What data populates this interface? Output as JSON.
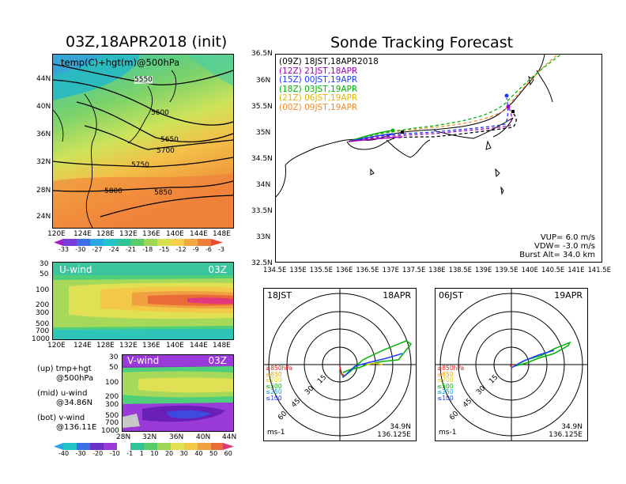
{
  "left_title": "03Z,18APR2018 (init)",
  "right_title": "Sonde Tracking Forecast",
  "top_map": {
    "label": "temp(C)+hgt(m)@500hPa",
    "contour_labels": [
      "5550",
      "5600",
      "5650",
      "5700",
      "5750",
      "5800",
      "5850"
    ],
    "lat_ticks": [
      "44N",
      "40N",
      "36N",
      "32N",
      "28N",
      "24N"
    ],
    "lon_ticks": [
      "120E",
      "124E",
      "128E",
      "132E",
      "136E",
      "140E",
      "144E",
      "148E"
    ],
    "temp_colorbar": [
      "-33",
      "-30",
      "-27",
      "-24",
      "-21",
      "-18",
      "-15",
      "-12",
      "-9",
      "-6",
      "-3"
    ]
  },
  "uwind": {
    "label": "U-wind",
    "time": "03Z",
    "p_ticks": [
      "30",
      "50",
      "100",
      "200",
      "300",
      "500",
      "700",
      "1000"
    ],
    "lon_ticks": [
      "120E",
      "124E",
      "128E",
      "132E",
      "136E",
      "140E",
      "144E",
      "148E"
    ]
  },
  "vwind": {
    "label": "V-wind",
    "time": "03Z",
    "p_ticks": [
      "30",
      "50",
      "100",
      "200",
      "300",
      "500",
      "700",
      "1000"
    ],
    "lat_ticks": [
      "28N",
      "32N",
      "36N",
      "40N",
      "44N"
    ]
  },
  "wind_colorbar": [
    "-40",
    "-30",
    "-20",
    "-10",
    "-1",
    "1",
    "10",
    "20",
    "30",
    "40",
    "50",
    "60"
  ],
  "notes": [
    {
      "line1": "(up) tmp+hgt",
      "line2": "@500hPa"
    },
    {
      "line1": "(mid) u-wind",
      "line2": "@34.86N"
    },
    {
      "line1": "(bot) v-wind",
      "line2": "@136.11E"
    }
  ],
  "track_map": {
    "lat_ticks": [
      "36.5N",
      "36N",
      "35.5N",
      "35N",
      "34.5N",
      "34N",
      "33.5N",
      "33N",
      "32.5N"
    ],
    "lon_ticks": [
      "134.5E",
      "135E",
      "135.5E",
      "136E",
      "136.5E",
      "137E",
      "137.5E",
      "138E",
      "138.5E",
      "139E",
      "139.5E",
      "140E",
      "140.5E",
      "141E",
      "141.5E"
    ],
    "legend": [
      {
        "text": "(09Z)  18JST,18APR2018",
        "color": "#000000"
      },
      {
        "text": "(12Z)  21JST,18APR",
        "color": "#a000c0"
      },
      {
        "text": "(15Z)  00JST,19APR",
        "color": "#1e3cff"
      },
      {
        "text": "(18Z)  03JST,19APR",
        "color": "#00b400"
      },
      {
        "text": "(21Z)  06JST,19APR",
        "color": "#e6b400"
      },
      {
        "text": "(00Z)  09JST,19APR",
        "color": "#f08c28"
      }
    ],
    "params": [
      "VUP=  6.0 m/s",
      "VDW= -3.0 m/s",
      "Burst Alt= 34.0 km"
    ]
  },
  "polar_left": {
    "time": "18JST",
    "date": "18APR",
    "rings": [
      "15",
      "30",
      "45",
      "60"
    ],
    "levels": [
      "≥850hPa",
      "≤850",
      "≤700",
      "≤500",
      "≤250",
      "≤100"
    ],
    "level_colors": [
      "#e02020",
      "#f0a000",
      "#e0d000",
      "#00b400",
      "#00a0e0",
      "#1e3cff"
    ],
    "unit": "ms-1",
    "lat": "34.9N",
    "lon": "136.125E"
  },
  "polar_right": {
    "time": "06JST",
    "date": "19APR",
    "rings": [
      "15",
      "30",
      "45",
      "60"
    ],
    "levels": [
      "≥850hPa",
      "≤850",
      "≤700",
      "≤500",
      "≤250",
      "≤100"
    ],
    "level_colors": [
      "#e02020",
      "#f0a000",
      "#e0d000",
      "#00b400",
      "#00a0e0",
      "#1e3cff"
    ],
    "unit": "ms-1",
    "lat": "34.9N",
    "lon": "136.125E"
  }
}
